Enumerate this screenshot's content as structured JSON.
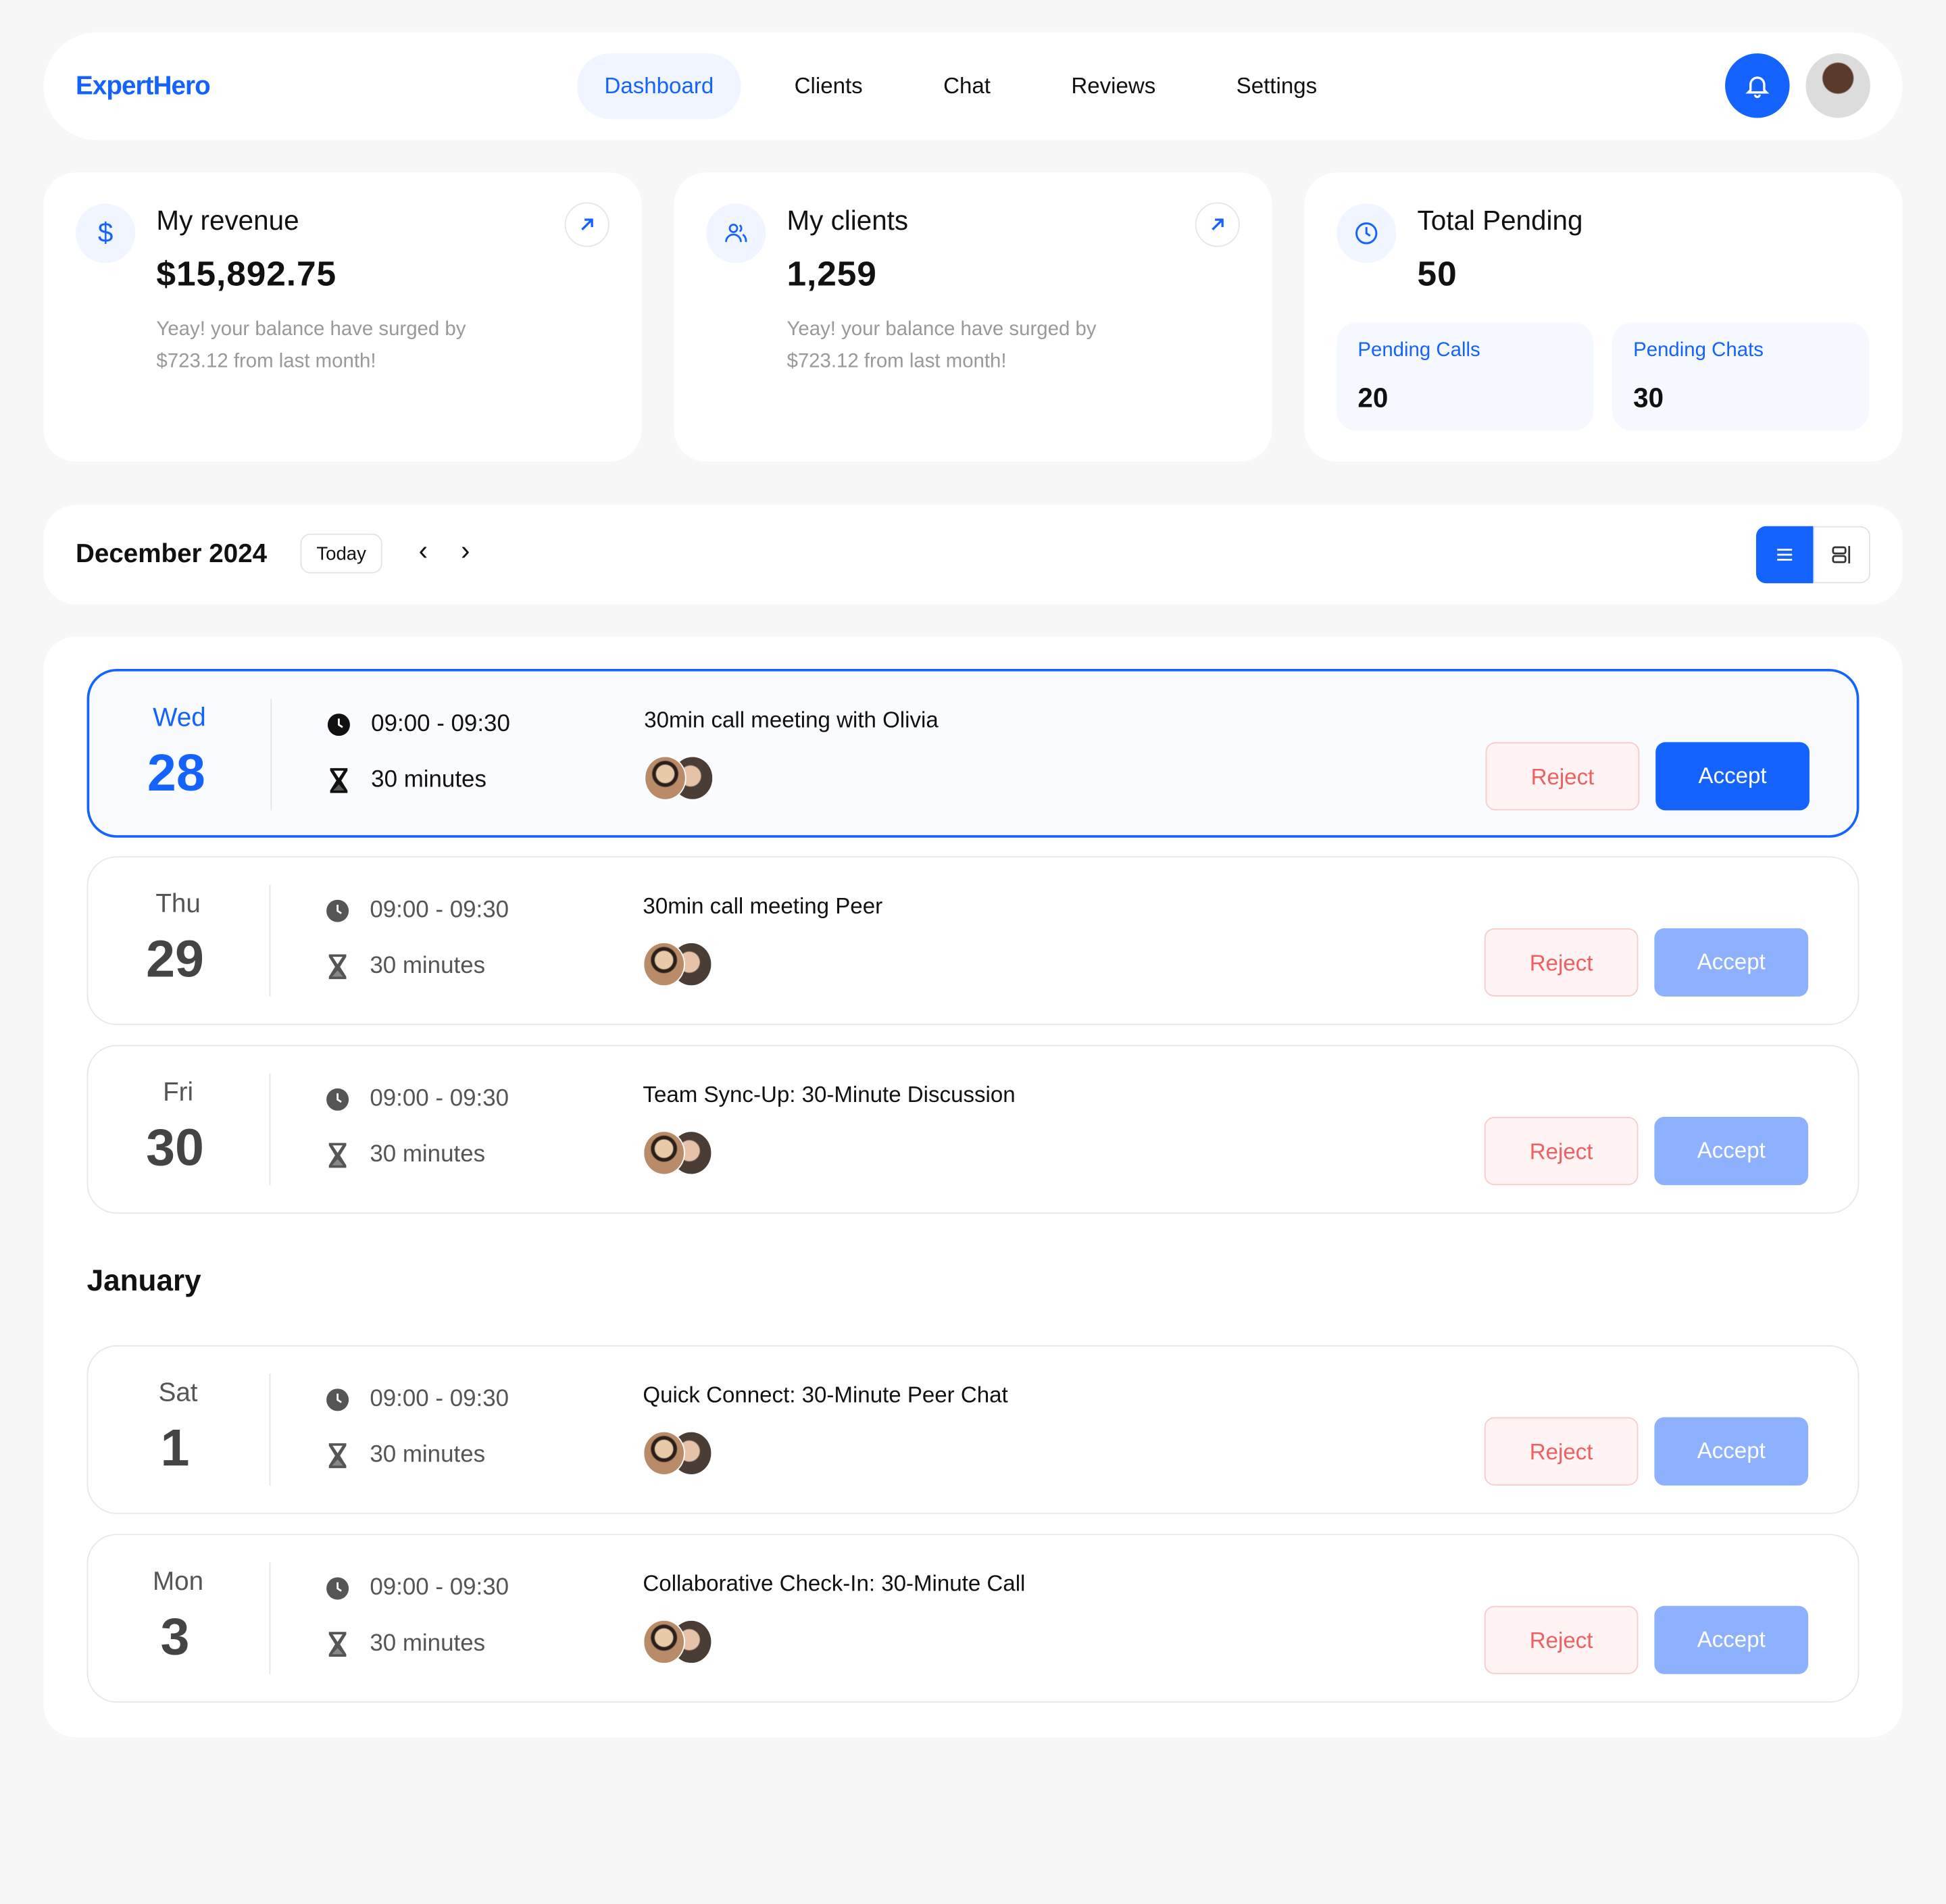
{
  "nav": {
    "logo": "ExpertHero",
    "tabs": [
      "Dashboard",
      "Clients",
      "Chat",
      "Reviews",
      "Settings"
    ],
    "active_tab": "Dashboard"
  },
  "stats": {
    "revenue": {
      "title": "My revenue",
      "value": "$15,892.75",
      "desc": "Yeay! your balance have surged by $723.12 from last month!"
    },
    "clients": {
      "title": "My clients",
      "value": "1,259",
      "desc": "Yeay! your balance have surged by $723.12 from last month!"
    },
    "pending": {
      "title": "Total Pending",
      "value": "50",
      "calls_label": "Pending Calls",
      "calls": "20",
      "chats_label": "Pending Chats",
      "chats": "30"
    }
  },
  "calendar": {
    "month": "December 2024",
    "today": "Today",
    "view": "list"
  },
  "sections": {
    "january": "January"
  },
  "events": [
    {
      "dow": "Wed",
      "day": "28",
      "time": "09:00 - 09:30",
      "duration": "30 minutes",
      "title": "30min call meeting with Olivia",
      "reject": "Reject",
      "accept": "Accept",
      "selected": true
    },
    {
      "dow": "Thu",
      "day": "29",
      "time": "09:00 - 09:30",
      "duration": "30 minutes",
      "title": "30min call meeting Peer",
      "reject": "Reject",
      "accept": "Accept"
    },
    {
      "dow": "Fri",
      "day": "30",
      "time": "09:00 - 09:30",
      "duration": "30 minutes",
      "title": "Team Sync-Up: 30-Minute Discussion",
      "reject": "Reject",
      "accept": "Accept"
    },
    {
      "dow": "Sat",
      "day": "1",
      "time": "09:00 - 09:30",
      "duration": "30 minutes",
      "title": "Quick Connect: 30-Minute Peer Chat",
      "reject": "Reject",
      "accept": "Accept"
    },
    {
      "dow": "Mon",
      "day": "3",
      "time": "09:00 - 09:30",
      "duration": "30 minutes",
      "title": "Collaborative Check-In: 30-Minute Call",
      "reject": "Reject",
      "accept": "Accept"
    }
  ],
  "colors": {
    "accent": "#1463ff",
    "accept_muted": "#8db1ff",
    "reject_text": "#f06060"
  }
}
